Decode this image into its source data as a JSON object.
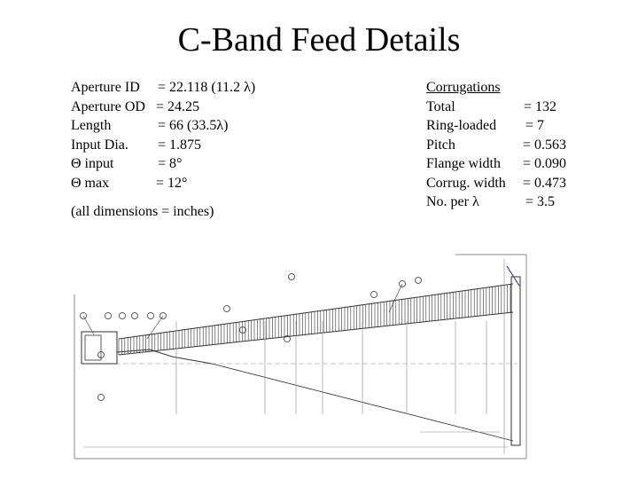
{
  "slide": {
    "title": "C-Band Feed Details"
  },
  "left_specs": [
    {
      "label": "Aperture ID",
      "value": "= 22.118 (11.2 λ)"
    },
    {
      "label": "Aperture OD",
      "value": "= 24.25"
    },
    {
      "label": "Length",
      "value": "= 66 (33.5λ)"
    },
    {
      "label": "Input Dia.",
      "value": "= 1.875"
    },
    {
      "label": "Θ input",
      "value": "= 8°"
    },
    {
      "label": "Θ max",
      "value": "= 12°"
    }
  ],
  "note": "(all dimensions = inches)",
  "corrugations": {
    "heading": "Corrugations",
    "rows": [
      {
        "label": "Total",
        "value": "= 132"
      },
      {
        "label": "Ring-loaded",
        "value": "= 7"
      },
      {
        "label": "Pitch",
        "value": "= 0.563"
      },
      {
        "label": "Flange width",
        "value": "= 0.090"
      },
      {
        "label": "Corrug. width",
        "value": "= 0.473"
      },
      {
        "label": "No. per λ",
        "value": "= 3.5"
      }
    ]
  },
  "drawing": {
    "line_color": "#333333",
    "light_color": "#8a8a8a",
    "accent_color": "#4a4aa0"
  }
}
